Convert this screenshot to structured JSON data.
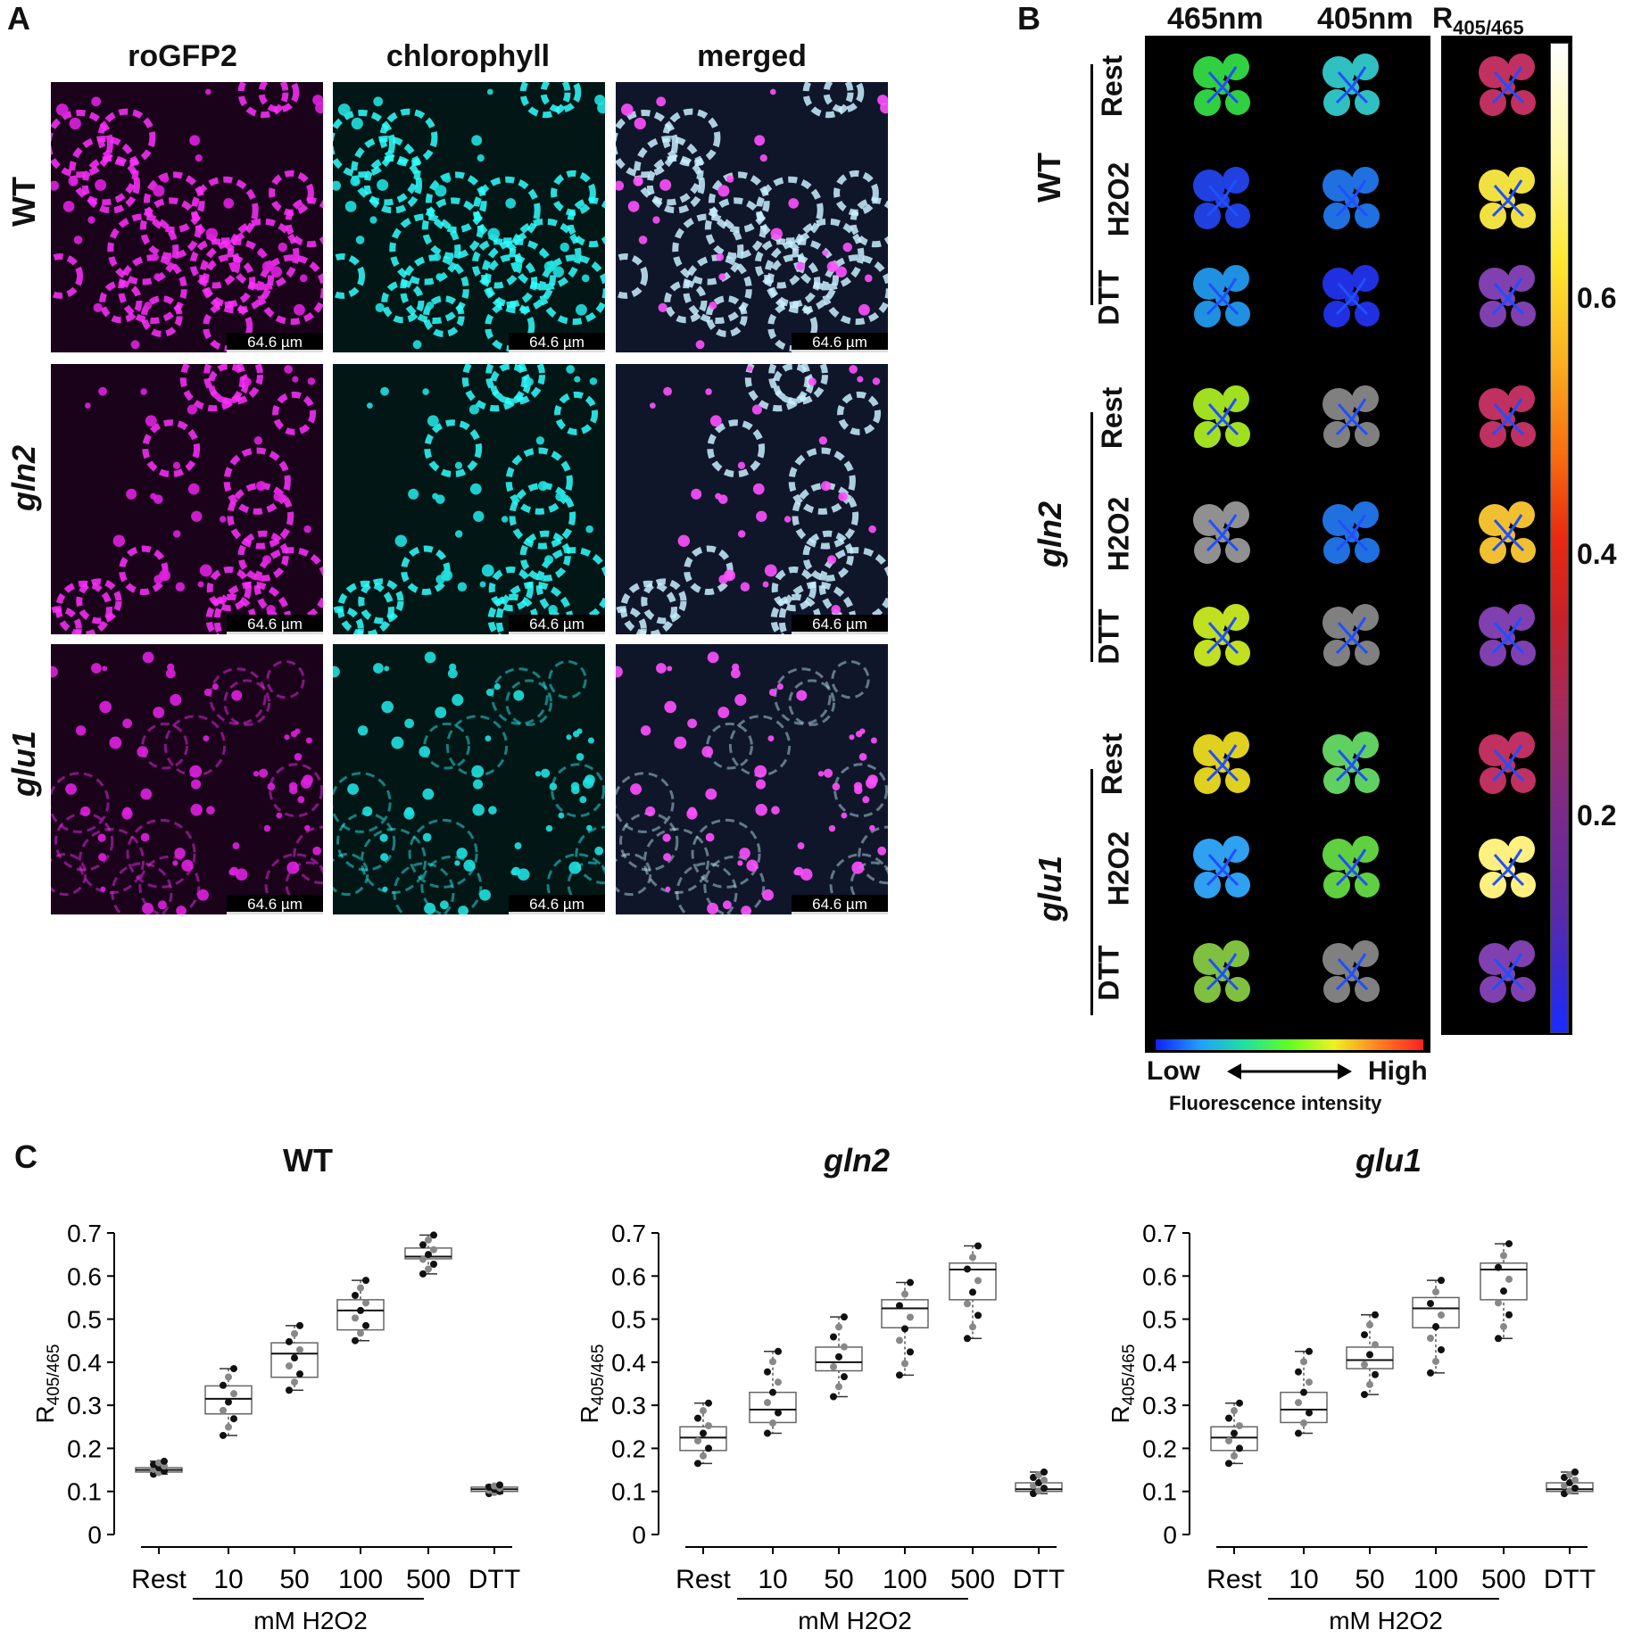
{
  "panelA": {
    "letter": "A",
    "columns": [
      "roGFP2",
      "chlorophyll",
      "merged"
    ],
    "rows": [
      "WT",
      "gln2",
      "glu1"
    ],
    "scale": "64.6 µm"
  },
  "panelB": {
    "letter": "B",
    "col_465": "465nm",
    "col_405": "405nm",
    "ratio_title": "R405/465",
    "ratio_main": "R",
    "ratio_sub": "405/465",
    "genotypes": [
      "WT",
      "gln2",
      "glu1"
    ],
    "conditions": [
      "Rest",
      "H2O2",
      "DTT"
    ],
    "colorbar_ticks": [
      "0.6",
      "0.4",
      "0.2"
    ],
    "intensity_low": "Low",
    "intensity_high": "High",
    "intensity_caption": "Fluorescence intensity"
  },
  "panelC": {
    "letter": "C",
    "ylabel": "R405/465",
    "treatment_label": "mM H2O2"
  },
  "chart_data": [
    {
      "type": "box",
      "title": "WT",
      "categories": [
        "Rest",
        "10",
        "50",
        "100",
        "500",
        "DTT"
      ],
      "ylim": [
        0,
        0.7
      ],
      "yticks": [
        "0",
        "0.1",
        "0.2",
        "0.3",
        "0.4",
        "0.5",
        "0.6",
        "0.7"
      ],
      "boxes": [
        {
          "q1": 0.145,
          "median": 0.15,
          "q3": 0.155,
          "min": 0.14,
          "max": 0.17
        },
        {
          "q1": 0.28,
          "median": 0.315,
          "q3": 0.345,
          "min": 0.23,
          "max": 0.385
        },
        {
          "q1": 0.365,
          "median": 0.42,
          "q3": 0.445,
          "min": 0.335,
          "max": 0.485
        },
        {
          "q1": 0.475,
          "median": 0.52,
          "q3": 0.545,
          "min": 0.45,
          "max": 0.59
        },
        {
          "q1": 0.64,
          "median": 0.645,
          "q3": 0.665,
          "min": 0.605,
          "max": 0.695
        },
        {
          "q1": 0.1,
          "median": 0.105,
          "q3": 0.11,
          "min": 0.095,
          "max": 0.115
        }
      ]
    },
    {
      "type": "box",
      "title": "gln2",
      "categories": [
        "Rest",
        "10",
        "50",
        "100",
        "500",
        "DTT"
      ],
      "ylim": [
        0,
        0.7
      ],
      "yticks": [
        "0",
        "0.1",
        "0.2",
        "0.3",
        "0.4",
        "0.5",
        "0.6",
        "0.7"
      ],
      "boxes": [
        {
          "q1": 0.195,
          "median": 0.225,
          "q3": 0.25,
          "min": 0.165,
          "max": 0.305
        },
        {
          "q1": 0.26,
          "median": 0.29,
          "q3": 0.33,
          "min": 0.235,
          "max": 0.425
        },
        {
          "q1": 0.38,
          "median": 0.4,
          "q3": 0.435,
          "min": 0.32,
          "max": 0.505
        },
        {
          "q1": 0.48,
          "median": 0.525,
          "q3": 0.545,
          "min": 0.37,
          "max": 0.585
        },
        {
          "q1": 0.545,
          "median": 0.615,
          "q3": 0.63,
          "min": 0.455,
          "max": 0.67
        },
        {
          "q1": 0.1,
          "median": 0.105,
          "q3": 0.12,
          "min": 0.095,
          "max": 0.145
        }
      ]
    },
    {
      "type": "box",
      "title": "glu1",
      "categories": [
        "Rest",
        "10",
        "50",
        "100",
        "500",
        "DTT"
      ],
      "ylim": [
        0,
        0.7
      ],
      "yticks": [
        "0",
        "0.1",
        "0.2",
        "0.3",
        "0.4",
        "0.5",
        "0.6",
        "0.7"
      ],
      "boxes": [
        {
          "q1": 0.195,
          "median": 0.225,
          "q3": 0.25,
          "min": 0.165,
          "max": 0.305
        },
        {
          "q1": 0.26,
          "median": 0.29,
          "q3": 0.33,
          "min": 0.235,
          "max": 0.425
        },
        {
          "q1": 0.385,
          "median": 0.405,
          "q3": 0.435,
          "min": 0.325,
          "max": 0.51
        },
        {
          "q1": 0.48,
          "median": 0.525,
          "q3": 0.55,
          "min": 0.375,
          "max": 0.59
        },
        {
          "q1": 0.545,
          "median": 0.615,
          "q3": 0.63,
          "min": 0.455,
          "max": 0.675
        },
        {
          "q1": 0.1,
          "median": 0.105,
          "q3": 0.12,
          "min": 0.095,
          "max": 0.145
        }
      ]
    }
  ]
}
